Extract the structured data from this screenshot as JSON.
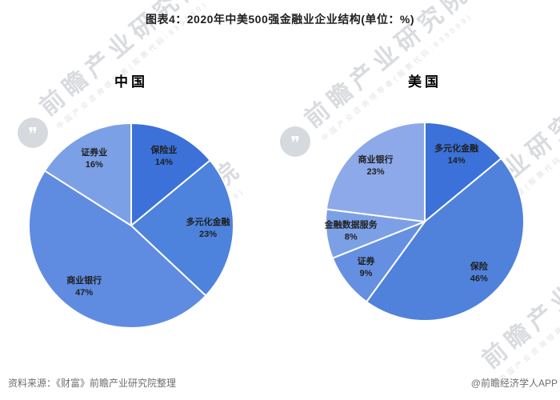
{
  "title": "图表4：2020年中美500强金融业企业结构(单位：%)",
  "footer": {
    "source": "资料来源：《财富》前瞻产业研究院整理",
    "credit": "@前瞻经济学人APP"
  },
  "watermark": {
    "main": "前瞻产业研究院",
    "sub": "中国产业咨询领导者(股票代码:839599)"
  },
  "chart_data": [
    {
      "type": "pie",
      "title": "中国",
      "unit": "%",
      "start_angle_deg": 0,
      "direction": "clockwise",
      "slices": [
        {
          "label": "保险业",
          "value": 14,
          "color": "#3B71D8"
        },
        {
          "label": "多元化金融",
          "value": 23,
          "color": "#4D83DD"
        },
        {
          "label": "商业银行",
          "value": 47,
          "color": "#5F8CE1"
        },
        {
          "label": "证券业",
          "value": 16,
          "color": "#7CA0E6"
        }
      ]
    },
    {
      "type": "pie",
      "title": "美国",
      "unit": "%",
      "start_angle_deg": 0,
      "direction": "clockwise",
      "slices": [
        {
          "label": "多元化金融",
          "value": 14,
          "color": "#3B71D8"
        },
        {
          "label": "保险",
          "value": 46,
          "color": "#5082DC"
        },
        {
          "label": "证券",
          "value": 9,
          "color": "#6590E2"
        },
        {
          "label": "金融数据服务",
          "value": 8,
          "color": "#7CA0E6"
        },
        {
          "label": "商业银行",
          "value": 23,
          "color": "#8DA9E9"
        }
      ]
    }
  ]
}
